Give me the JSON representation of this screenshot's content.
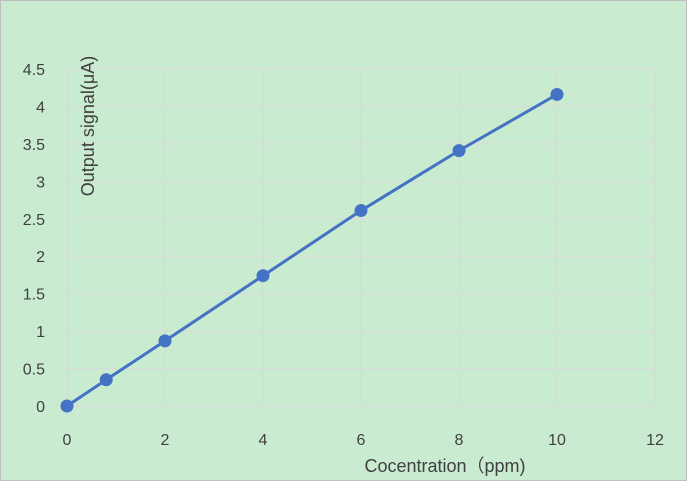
{
  "chart_data": {
    "type": "line",
    "title": "",
    "xlabel": "Cocentration（ppm)",
    "ylabel": "Output signal(μA)",
    "x_ticks": [
      "0",
      "2",
      "4",
      "6",
      "8",
      "10",
      "12"
    ],
    "y_ticks": [
      "0",
      "0.5",
      "1",
      "1.5",
      "2",
      "2.5",
      "3",
      "3.5",
      "4",
      "4.5"
    ],
    "xlim": [
      0,
      12
    ],
    "ylim": [
      0,
      4.5
    ],
    "grid": "horizontal and vertical",
    "legend": "none",
    "series": [
      {
        "x": [
          0,
          0.8,
          2,
          4,
          6,
          8,
          10
        ],
        "y": [
          0,
          0.35,
          0.87,
          1.74,
          2.61,
          3.41,
          4.16
        ]
      }
    ]
  },
  "colors": {
    "background": "#c9ecd1",
    "gridline": "#d9d9d9",
    "series_line": "#4472c4",
    "text": "#404040"
  }
}
